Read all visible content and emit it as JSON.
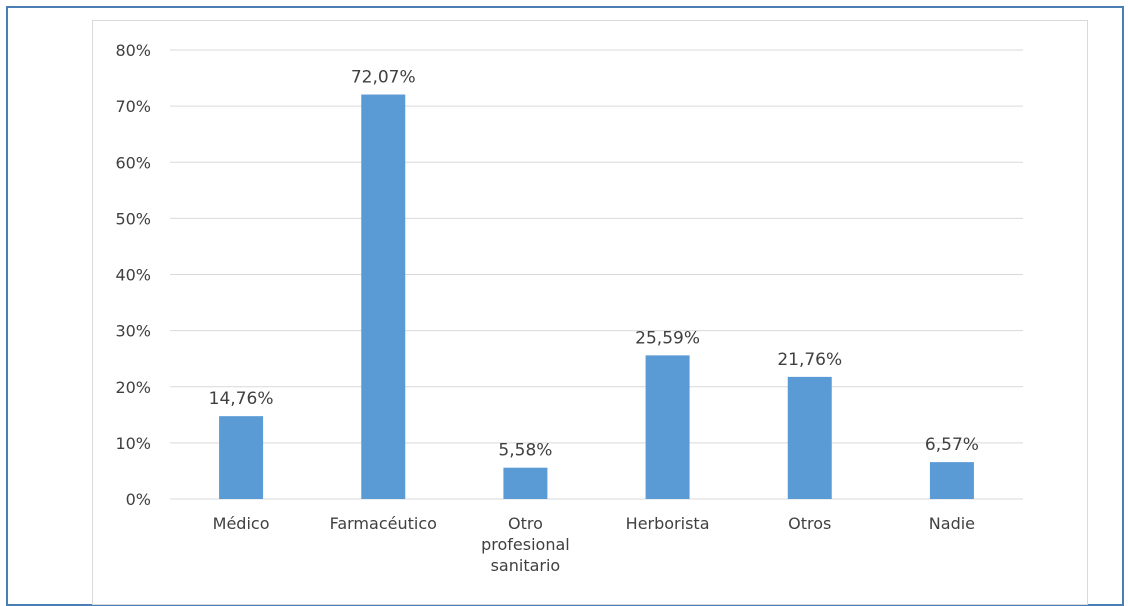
{
  "chart_data": {
    "type": "bar",
    "categories": [
      "Médico",
      "Farmacéutico",
      "Otro profesional sanitario",
      "Herborista",
      "Otros",
      "Nadie"
    ],
    "category_lines": [
      [
        "Médico"
      ],
      [
        "Farmacéutico"
      ],
      [
        "Otro",
        "profesional",
        "sanitario"
      ],
      [
        "Herborista"
      ],
      [
        "Otros"
      ],
      [
        "Nadie"
      ]
    ],
    "values": [
      14.76,
      72.07,
      5.58,
      25.59,
      21.76,
      6.57
    ],
    "data_labels": [
      "14,76%",
      "72,07%",
      "5,58%",
      "25,59%",
      "21,76%",
      "6,57%"
    ],
    "yticks": [
      "0%",
      "10%",
      "20%",
      "30%",
      "40%",
      "50%",
      "60%",
      "70%",
      "80%"
    ],
    "ylim": [
      0,
      80
    ],
    "grid": true,
    "bar_color": "#5b9bd5",
    "grid_color": "#d9d9d9"
  }
}
